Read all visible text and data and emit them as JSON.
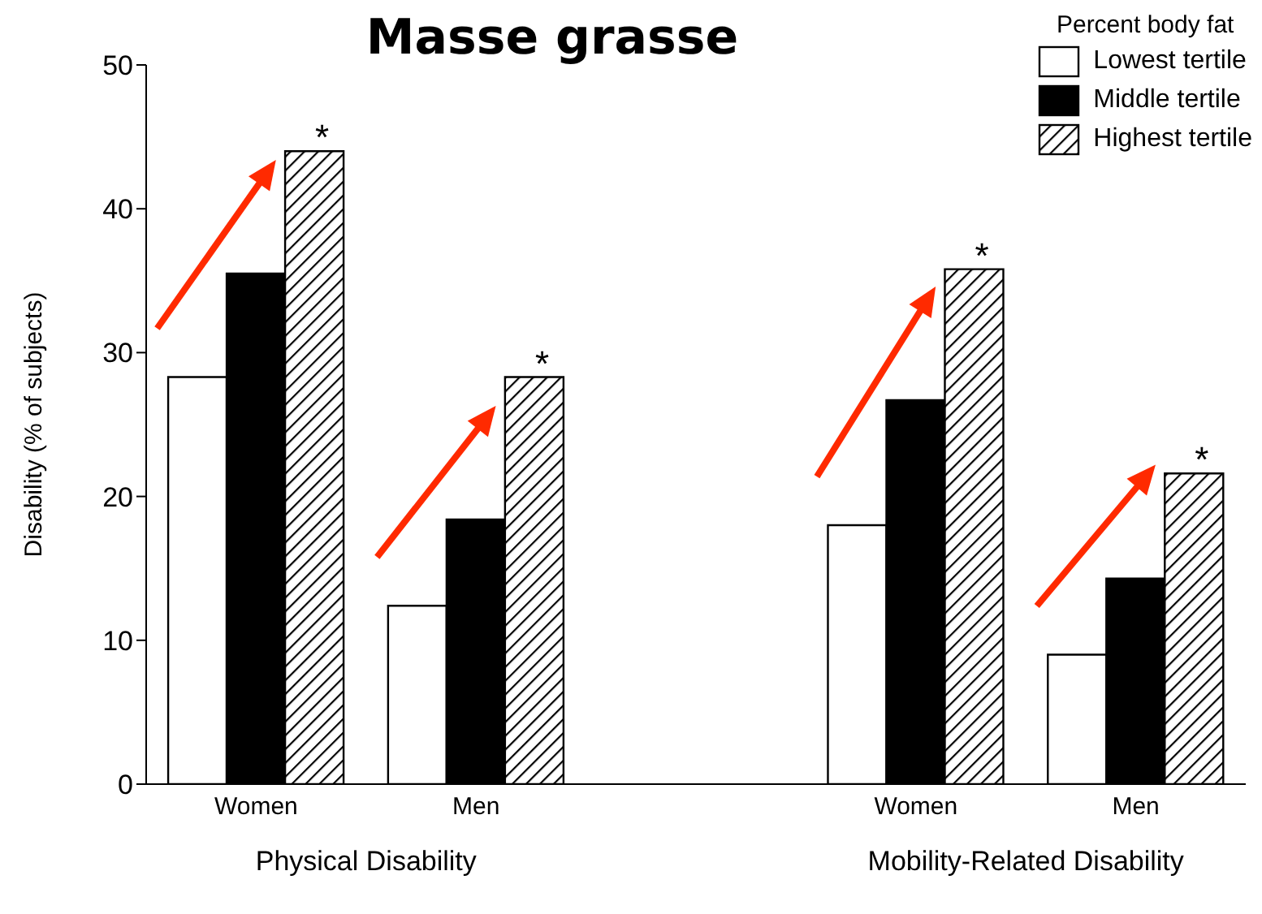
{
  "chart_data": {
    "type": "bar",
    "title": "Masse grasse",
    "ylabel": "Disability (% of subjects)",
    "legend_title": "Percent body fat",
    "legend": "top right",
    "categories": [
      "Women",
      "Men",
      null,
      "Women",
      "Men"
    ],
    "series": [
      {
        "name": "Lowest tertile",
        "color": "#ffffff",
        "values": [
          28.3,
          12.4,
          null,
          18.0,
          9.0
        ]
      },
      {
        "name": "Middle tertile",
        "color": "#000000",
        "values": [
          35.5,
          18.4,
          null,
          26.7,
          14.3
        ]
      },
      {
        "name": "Highest tertile",
        "color": "#000000",
        "values": [
          44.0,
          28.3,
          null,
          35.8,
          21.6
        ]
      }
    ],
    "ylim": [
      0,
      50
    ],
    "yticks": [
      0,
      10,
      20,
      30,
      40,
      50
    ],
    "grid": false,
    "annotations": [
      "Physical Disability",
      "Mobility-Related Disability",
      "*",
      "*",
      "*",
      "*"
    ]
  }
}
